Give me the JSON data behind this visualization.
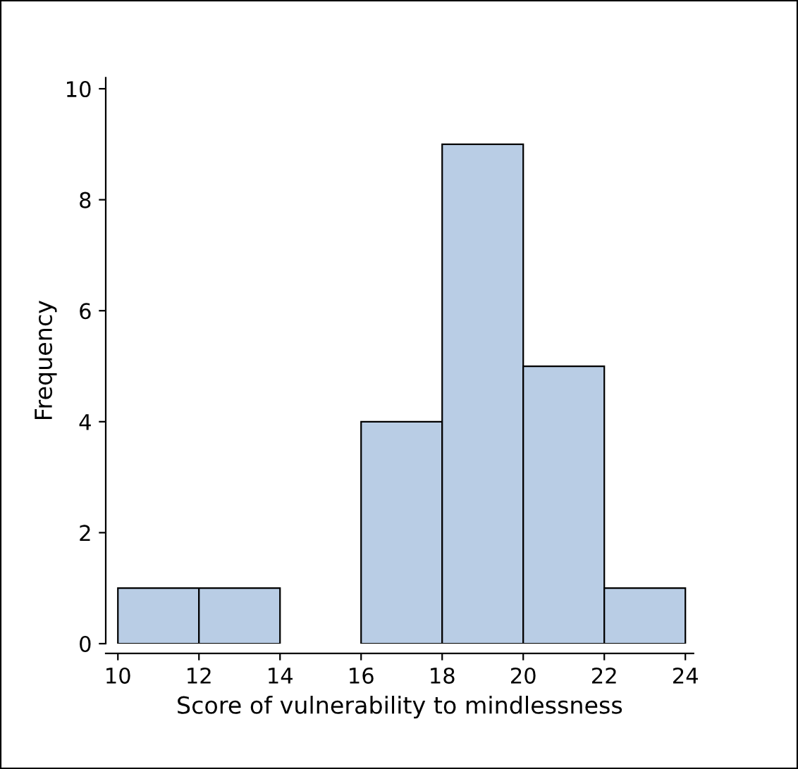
{
  "chart_data": {
    "type": "histogram",
    "xlabel": "Score of vulnerability to mindlessness",
    "ylabel": "Frequency",
    "bins": [
      10,
      12,
      14,
      16,
      18,
      20,
      22,
      24
    ],
    "values": [
      1,
      1,
      0,
      4,
      9,
      5,
      1
    ],
    "color": "#b9cde5",
    "xlim": [
      9.7,
      24.2
    ],
    "xticks": [
      10,
      12,
      14,
      16,
      18,
      20,
      22,
      24
    ],
    "ylim": [
      0,
      10.2
    ],
    "yticks": [
      0,
      2,
      4,
      6,
      8,
      10
    ],
    "grid": false
  }
}
